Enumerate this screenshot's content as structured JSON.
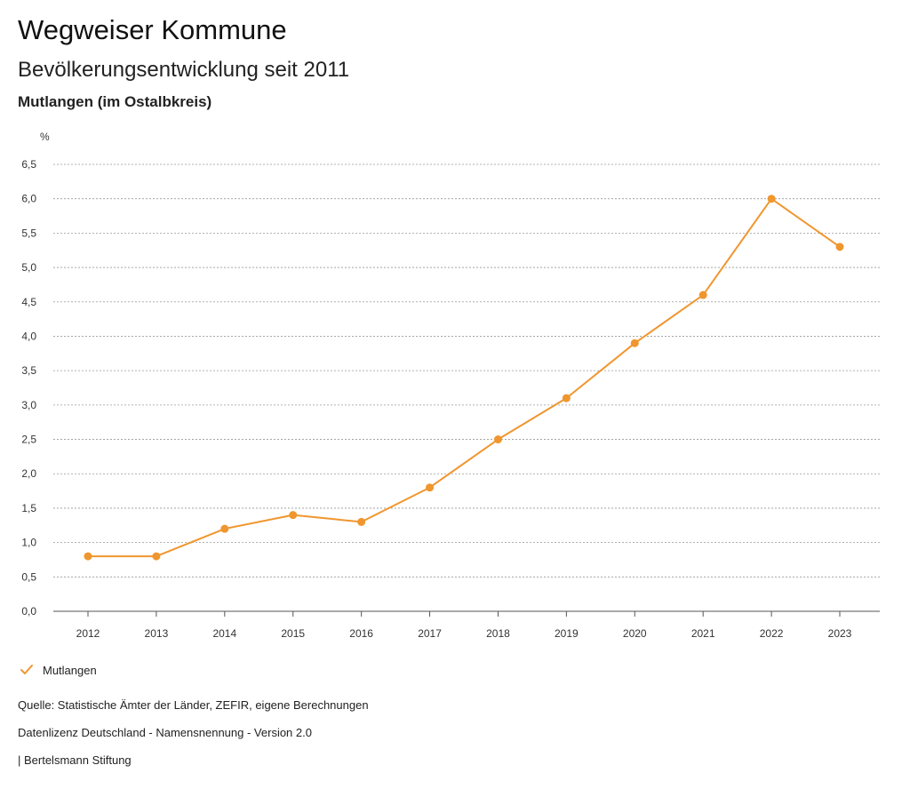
{
  "header": {
    "title": "Wegweiser Kommune",
    "subtitle": "Bevölkerungsentwicklung seit 2011",
    "region": "Mutlangen (im Ostalbkreis)"
  },
  "legend": {
    "label": "Mutlangen",
    "icon": "check-icon"
  },
  "footer": {
    "source": "Quelle: Statistische Ämter der Länder, ZEFIR, eigene Berechnungen",
    "license": "Datenlizenz Deutschland - Namensnennung - Version 2.0",
    "publisher": "| Bertelsmann Stiftung"
  },
  "colors": {
    "series": "#F0962E",
    "grid": "#999999",
    "axis": "#555555"
  },
  "chart_data": {
    "type": "line",
    "title": "Bevölkerungsentwicklung seit 2011",
    "xlabel": "",
    "ylabel": "%",
    "ylim": [
      0,
      6.5
    ],
    "yticks": [
      "0,0",
      "0,5",
      "1,0",
      "1,5",
      "2,0",
      "2,5",
      "3,0",
      "3,5",
      "4,0",
      "4,5",
      "5,0",
      "5,5",
      "6,0",
      "6,5"
    ],
    "grid": true,
    "legend": "bottom-left",
    "x": [
      "2012",
      "2013",
      "2014",
      "2015",
      "2016",
      "2017",
      "2018",
      "2019",
      "2020",
      "2021",
      "2022",
      "2023"
    ],
    "series": [
      {
        "name": "Mutlangen",
        "values": [
          0.8,
          0.8,
          1.2,
          1.4,
          1.3,
          1.8,
          2.5,
          3.1,
          3.9,
          4.6,
          6.0,
          5.3
        ]
      }
    ]
  }
}
